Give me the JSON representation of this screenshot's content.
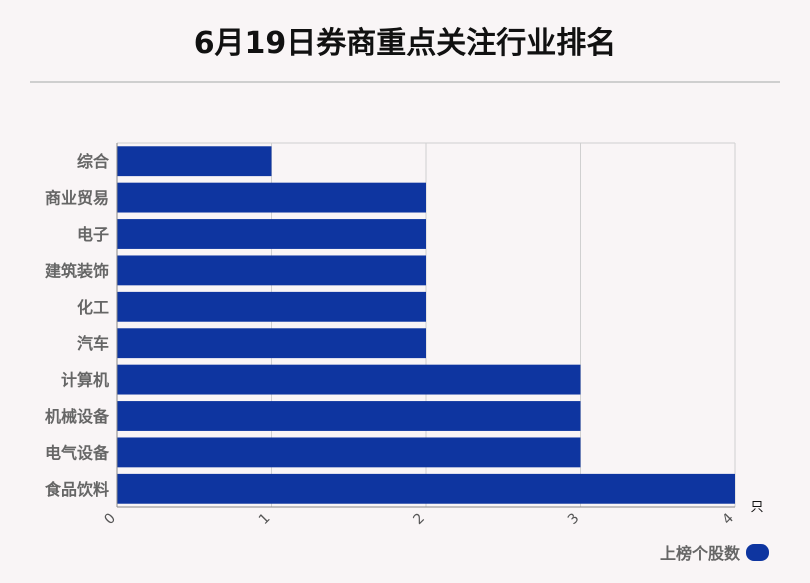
{
  "title": "6月19日券商重点关注行业排名",
  "chart_data": {
    "type": "bar",
    "orientation": "horizontal",
    "categories": [
      "综合",
      "商业贸易",
      "电子",
      "建筑装饰",
      "化工",
      "汽车",
      "计算机",
      "机械设备",
      "电气设备",
      "食品饮料"
    ],
    "series": [
      {
        "name": "上榜个股数",
        "values": [
          1,
          2,
          2,
          2,
          2,
          2,
          3,
          3,
          3,
          4
        ],
        "color": "#0e35a0"
      }
    ],
    "xlim": [
      0,
      4
    ],
    "x_ticks": [
      "0",
      "1",
      "2",
      "3",
      "4"
    ],
    "x_unit": "只",
    "grid": true,
    "legend_position": "bottom-right"
  }
}
